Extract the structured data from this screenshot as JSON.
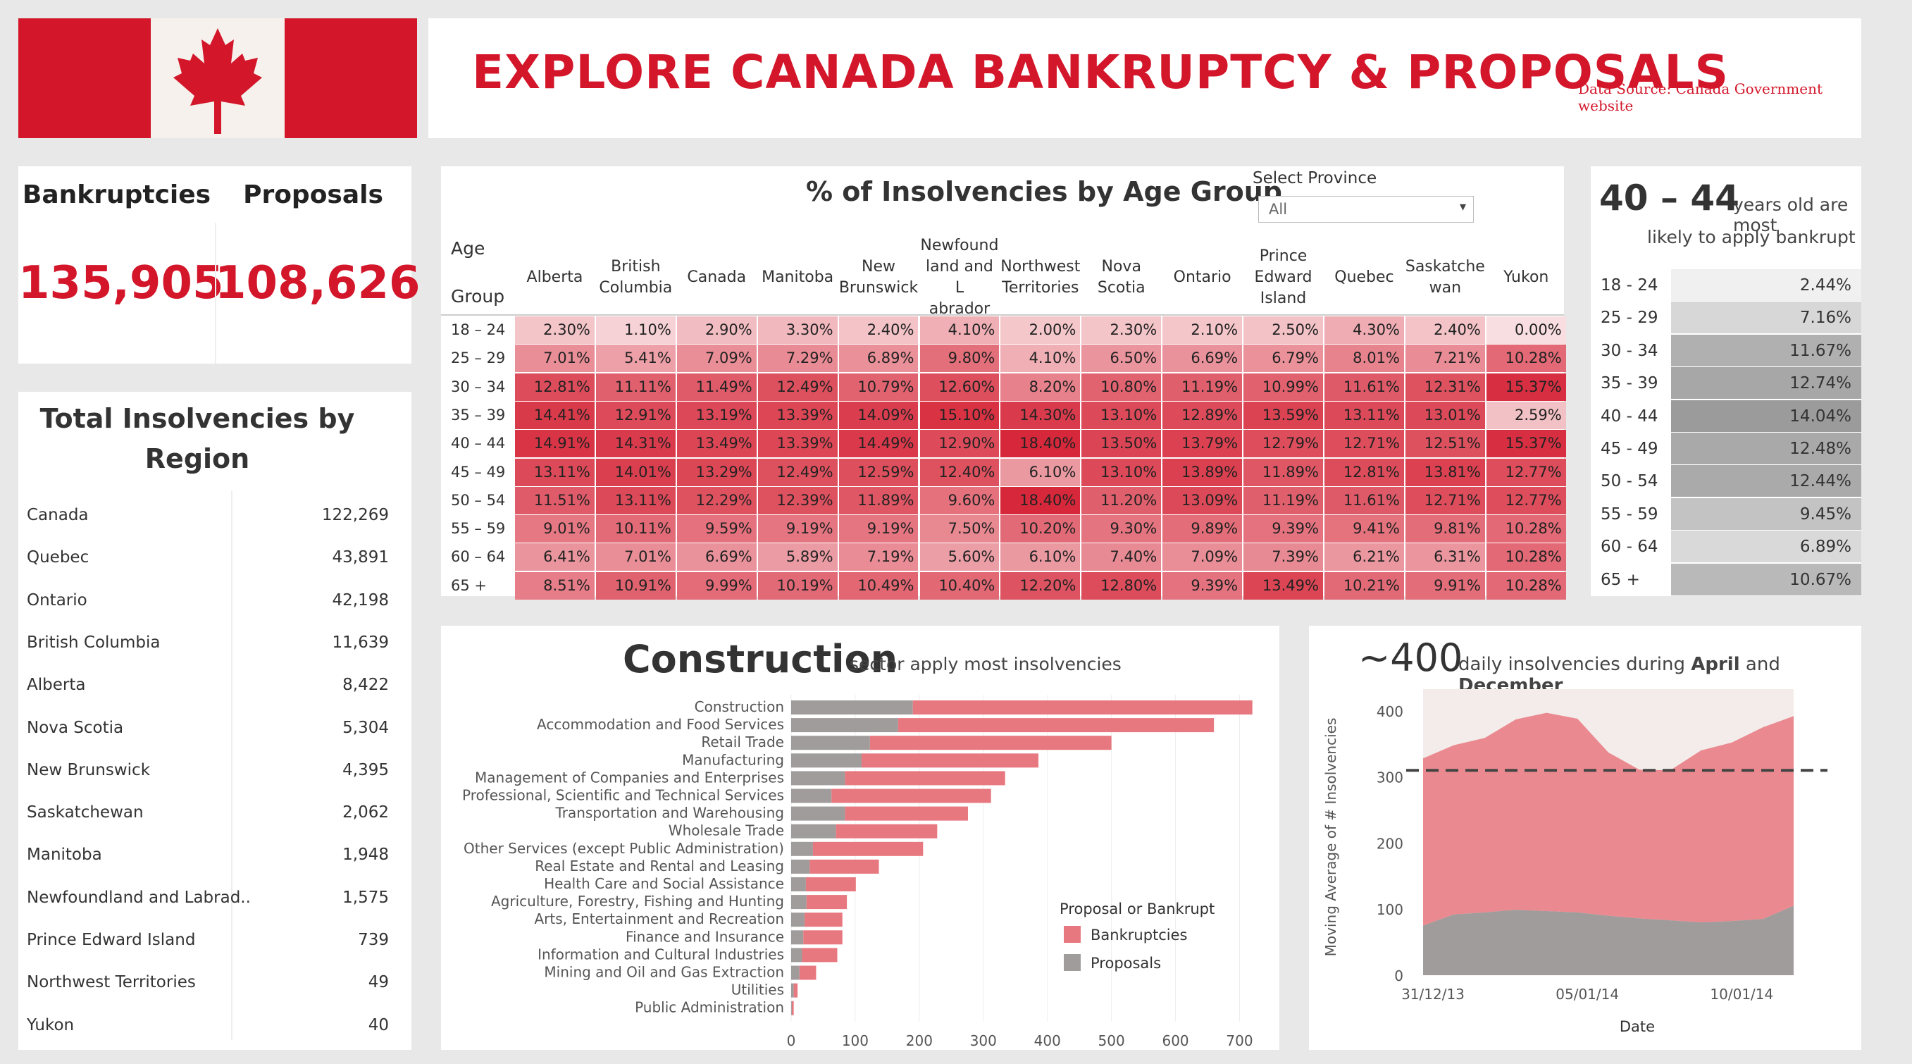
{
  "title": "EXPLORE CANADA BANKRUPTCY & PROPOSALS",
  "data_source": "Data Source: Canada Government website",
  "colors": {
    "brand_red": "#d3162a",
    "bankruptcies": "#e8787f",
    "proposals": "#a09c9c"
  },
  "kpi": {
    "bankruptcies_label": "Bankruptcies",
    "bankruptcies_value": "135,905",
    "proposals_label": "Proposals",
    "proposals_value": "108,626"
  },
  "region": {
    "title": "Total Insolvencies by Region",
    "rows": [
      {
        "name": "Canada",
        "value": "122,269"
      },
      {
        "name": "Quebec",
        "value": "43,891"
      },
      {
        "name": "Ontario",
        "value": "42,198"
      },
      {
        "name": "British Columbia",
        "value": "11,639"
      },
      {
        "name": "Alberta",
        "value": "8,422"
      },
      {
        "name": "Nova Scotia",
        "value": "5,304"
      },
      {
        "name": "New Brunswick",
        "value": "4,395"
      },
      {
        "name": "Saskatchewan",
        "value": "2,062"
      },
      {
        "name": "Manitoba",
        "value": "1,948"
      },
      {
        "name": "Newfoundland and Labrad..",
        "value": "1,575"
      },
      {
        "name": "Prince Edward Island",
        "value": "739"
      },
      {
        "name": "Northwest Territories",
        "value": "49"
      },
      {
        "name": "Yukon",
        "value": "40"
      }
    ]
  },
  "heatmap": {
    "title": "% of Insolvencies by Age Group",
    "select_label": "Select Province",
    "select_value": "All",
    "corner_label": [
      "Age",
      "Group"
    ],
    "columns": [
      [
        "Alberta"
      ],
      [
        "British",
        "Columbia"
      ],
      [
        "Canada"
      ],
      [
        "Manitoba"
      ],
      [
        "New",
        "Brunswick"
      ],
      [
        "Newfound",
        "land and L",
        "abrador"
      ],
      [
        "Northwest",
        "Territories"
      ],
      [
        "Nova",
        "Scotia"
      ],
      [
        "Ontario"
      ],
      [
        "Prince",
        "Edward",
        "Island"
      ],
      [
        "Quebec"
      ],
      [
        "Saskatche",
        "wan"
      ],
      [
        "Yukon"
      ]
    ],
    "age_groups": [
      "18 – 24",
      "25 – 29",
      "30 – 34",
      "35 – 39",
      "40 – 44",
      "45 – 49",
      "50 – 54",
      "55 – 59",
      "60 – 64",
      "65 +"
    ],
    "values": [
      [
        "2.30%",
        "1.10%",
        "2.90%",
        "3.30%",
        "2.40%",
        "4.10%",
        "2.00%",
        "2.30%",
        "2.10%",
        "2.50%",
        "4.30%",
        "2.40%",
        "0.00%"
      ],
      [
        "7.01%",
        "5.41%",
        "7.09%",
        "7.29%",
        "6.89%",
        "9.80%",
        "4.10%",
        "6.50%",
        "6.69%",
        "6.79%",
        "8.01%",
        "7.21%",
        "10.28%"
      ],
      [
        "12.81%",
        "11.11%",
        "11.49%",
        "12.49%",
        "10.79%",
        "12.60%",
        "8.20%",
        "10.80%",
        "11.19%",
        "10.99%",
        "11.61%",
        "12.31%",
        "15.37%"
      ],
      [
        "14.41%",
        "12.91%",
        "13.19%",
        "13.39%",
        "14.09%",
        "15.10%",
        "14.30%",
        "13.10%",
        "12.89%",
        "13.59%",
        "13.11%",
        "13.01%",
        "2.59%"
      ],
      [
        "14.91%",
        "14.31%",
        "13.49%",
        "13.39%",
        "14.49%",
        "12.90%",
        "18.40%",
        "13.50%",
        "13.79%",
        "12.79%",
        "12.71%",
        "12.51%",
        "15.37%"
      ],
      [
        "13.11%",
        "14.01%",
        "13.29%",
        "12.49%",
        "12.59%",
        "12.40%",
        "6.10%",
        "13.10%",
        "13.89%",
        "11.89%",
        "12.81%",
        "13.81%",
        "12.77%"
      ],
      [
        "11.51%",
        "13.11%",
        "12.29%",
        "12.39%",
        "11.89%",
        "9.60%",
        "18.40%",
        "11.20%",
        "13.09%",
        "11.19%",
        "11.61%",
        "12.71%",
        "12.77%"
      ],
      [
        "9.01%",
        "10.11%",
        "9.59%",
        "9.19%",
        "9.19%",
        "7.50%",
        "10.20%",
        "9.30%",
        "9.89%",
        "9.39%",
        "9.41%",
        "9.81%",
        "10.28%"
      ],
      [
        "6.41%",
        "7.01%",
        "6.69%",
        "5.89%",
        "7.19%",
        "5.60%",
        "6.10%",
        "7.40%",
        "7.09%",
        "7.39%",
        "6.21%",
        "6.31%",
        "10.28%"
      ],
      [
        "8.51%",
        "10.91%",
        "9.99%",
        "10.19%",
        "10.49%",
        "10.40%",
        "12.20%",
        "12.80%",
        "9.39%",
        "13.49%",
        "10.21%",
        "9.91%",
        "10.28%"
      ]
    ]
  },
  "age_panel": {
    "headline_big": "40 – 44",
    "headline_small1": "years old are most",
    "headline_small2": "likely to apply bankrupt",
    "rows": [
      {
        "label": "18 - 24",
        "value": "2.44%",
        "shade": "#f0f0f0"
      },
      {
        "label": "25 - 29",
        "value": "7.16%",
        "shade": "#d7d7d7"
      },
      {
        "label": "30 - 34",
        "value": "11.67%",
        "shade": "#b0b0b0"
      },
      {
        "label": "35 - 39",
        "value": "12.74%",
        "shade": "#a7a7a7"
      },
      {
        "label": "40 - 44",
        "value": "14.04%",
        "shade": "#9b9b9b"
      },
      {
        "label": "45 - 49",
        "value": "12.48%",
        "shade": "#a9a9a9"
      },
      {
        "label": "50 - 54",
        "value": "12.44%",
        "shade": "#aaaaaa"
      },
      {
        "label": "55 - 59",
        "value": "9.45%",
        "shade": "#c3c3c3"
      },
      {
        "label": "60 - 64",
        "value": "6.89%",
        "shade": "#d9d9d9"
      },
      {
        "label": "65 +",
        "value": "10.67%",
        "shade": "#b9b9b9"
      }
    ]
  },
  "sector": {
    "title_big": "Construction",
    "title_small": "sector apply most insolvencies"
  },
  "daily": {
    "title_big": "~400",
    "title_small_parts": [
      "daily insolvencies during ",
      "April",
      " and ",
      "December"
    ]
  },
  "chart_data": [
    {
      "type": "heatmap",
      "title": "% of Insolvencies by Age Group",
      "rows": "heatmap.age_groups",
      "columns": "heatmap.columns",
      "value_range": [
        0,
        18.4
      ]
    },
    {
      "type": "bar",
      "orientation": "horizontal",
      "stacked": true,
      "categories": [
        "Construction",
        "Accommodation and Food Services",
        "Retail Trade",
        "Manufacturing",
        "Management of Companies and Enterprises",
        "Professional, Scientific and Technical Services",
        "Transportation and Warehousing",
        "Wholesale Trade",
        "Other Services (except Public Administration)",
        "Real Estate and Rental and Leasing",
        "Health Care and Social Assistance",
        "Agriculture, Forestry, Fishing and Hunting",
        "Arts, Entertainment and Recreation",
        "Finance and Insurance",
        "Information and Cultural Industries",
        "Mining and Oil and Gas Extraction",
        "Utilities",
        "Public Administration"
      ],
      "series": [
        {
          "name": "Proposals",
          "values": [
            190,
            167,
            123,
            110,
            84,
            63,
            84,
            70,
            34,
            29,
            23,
            24,
            21,
            19,
            17,
            13,
            4,
            1
          ]
        },
        {
          "name": "Bankruptcies",
          "values": [
            530,
            493,
            377,
            276,
            250,
            249,
            192,
            158,
            172,
            108,
            78,
            63,
            59,
            61,
            55,
            26,
            6,
            3
          ]
        }
      ],
      "xlim": [
        0,
        750
      ],
      "xticks": [
        0,
        100,
        200,
        300,
        400,
        500,
        600,
        700
      ],
      "legend_title": "Proposal or Bankrupt",
      "legend": [
        "Bankruptcies",
        "Proposals"
      ],
      "legend_position": "bottom-right"
    },
    {
      "type": "area",
      "stacked": true,
      "x": [
        "31/12/13",
        "",
        "",
        "",
        "",
        "05/01/14",
        "",
        "",
        "",
        "",
        "10/01/14",
        "",
        ""
      ],
      "series": [
        {
          "name": "Proposals",
          "values": [
            75,
            92,
            95,
            99,
            97,
            95,
            90,
            86,
            83,
            80,
            82,
            85,
            105
          ]
        },
        {
          "name": "Bankruptcies",
          "values": [
            253,
            256,
            264,
            288,
            300,
            293,
            247,
            225,
            227,
            260,
            270,
            290,
            287
          ]
        }
      ],
      "reference_line": 310,
      "ylim": [
        0,
        420
      ],
      "yticks": [
        0,
        100,
        200,
        300,
        400
      ],
      "xticks": [
        "31/12/13",
        "05/01/14",
        "10/01/14"
      ],
      "ylabel": "Moving Average of # Insolvencies",
      "xlabel": "Date"
    }
  ]
}
